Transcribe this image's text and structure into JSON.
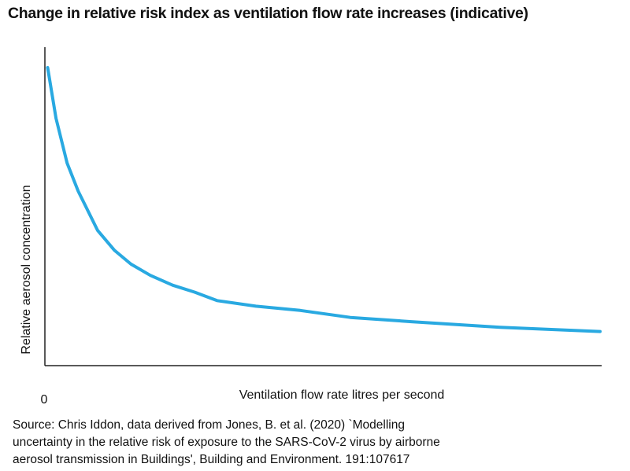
{
  "chart_data": {
    "type": "line",
    "title": "Change in relative risk index as ventilation flow rate increases (indicative)",
    "xlabel": "Ventilation flow rate litres per second",
    "ylabel": "Relative aerosol concentration",
    "x_tick_labels": [
      "0"
    ],
    "xlim": [
      0,
      100
    ],
    "ylim": [
      0,
      100
    ],
    "grid": false,
    "legend": "none",
    "series": [
      {
        "color": "#29a9e1",
        "x": [
          0.5,
          2,
          4,
          6,
          9.5,
          12.5,
          15.5,
          19,
          23,
          27,
          31,
          38,
          46,
          55,
          66,
          82,
          100
        ],
        "y": [
          100,
          82,
          66,
          56,
          42,
          35,
          30,
          26,
          22.5,
          20,
          17,
          15,
          13.5,
          11,
          9.5,
          7.5,
          6
        ]
      }
    ]
  },
  "source": {
    "lines": [
      "Source: Chris Iddon, data derived from Jones, B. et al. (2020) `Modelling",
      "uncertainty in the relative risk of exposure to the SARS-CoV-2 virus by airborne",
      "aerosol transmission in Buildings', Building and Environment. 191:107617"
    ]
  }
}
